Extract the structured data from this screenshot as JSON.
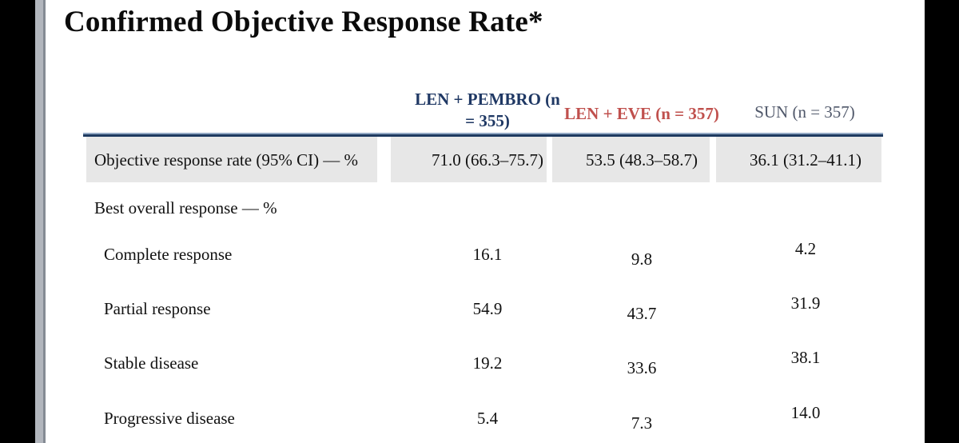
{
  "title": "Confirmed Objective Response Rate*",
  "colors": {
    "header_len_pembro": "#1f3864",
    "header_len_eve": "#c0504d",
    "header_sun": "#50586a",
    "accent_rule": "#1e3a60",
    "highlight_row_bg": "#e7e7e7",
    "letterbox": "#000000"
  },
  "table": {
    "columns": [
      {
        "label": "LEN + PEMBRO (n = 355)",
        "color": "#1f3864"
      },
      {
        "label": "LEN + EVE (n = 357)",
        "color": "#c0504d"
      },
      {
        "label": "SUN (n = 357)",
        "color": "#50586a"
      }
    ],
    "rows": [
      {
        "label": "Objective response rate (95% CI) — %",
        "values": [
          "71.0 (66.3–75.7)",
          "53.5 (48.3–58.7)",
          "36.1 (31.2–41.1)"
        ],
        "highlighted": true
      },
      {
        "label": "Best overall response — %",
        "values": []
      },
      {
        "label": "Complete response",
        "values": [
          "16.1",
          "9.8",
          "4.2"
        ]
      },
      {
        "label": "Partial response",
        "values": [
          "54.9",
          "43.7",
          "31.9"
        ]
      },
      {
        "label": "Stable disease",
        "values": [
          "19.2",
          "33.6",
          "38.1"
        ]
      },
      {
        "label": "Progressive disease",
        "values": [
          "5.4",
          "7.3",
          "14.0"
        ]
      }
    ]
  }
}
